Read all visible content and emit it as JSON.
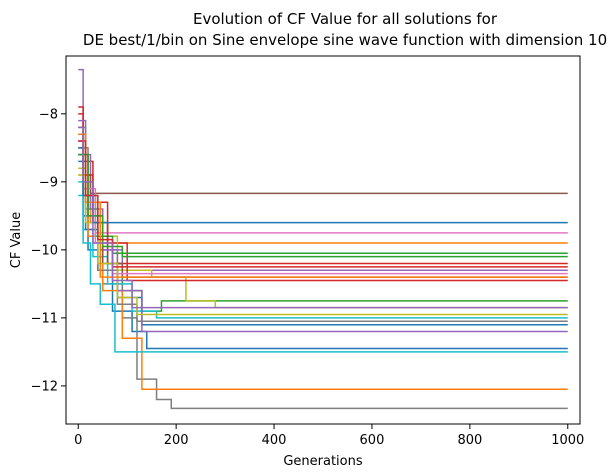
{
  "chart_data": {
    "type": "line",
    "title": "Evolution of CF Value for all solutions for",
    "subtitle": "DE best/1/bin on Sine envelope sine wave function with dimension 10",
    "xlabel": "Generations",
    "ylabel": "CF Value",
    "xlim": [
      -25,
      1025
    ],
    "ylim": [
      -12.56,
      -7.15
    ],
    "x_ticks": [
      0,
      200,
      400,
      600,
      800,
      1000
    ],
    "y_ticks": [
      -8,
      -9,
      -10,
      -11,
      -12
    ],
    "x_tick_labels": [
      "0",
      "200",
      "400",
      "600",
      "800",
      "1000"
    ],
    "y_tick_labels": [
      "−8",
      "−9",
      "−10",
      "−11",
      "−12"
    ],
    "grid": false,
    "legend": "none",
    "series": [
      {
        "color": "#1f77b4",
        "points": [
          [
            0,
            -8.6
          ],
          [
            10,
            -9.5
          ],
          [
            20,
            -10.0
          ],
          [
            40,
            -10.3
          ],
          [
            70,
            -10.9
          ],
          [
            110,
            -11.2
          ],
          [
            140,
            -11.45
          ],
          [
            1000,
            -11.45
          ]
        ]
      },
      {
        "color": "#ff7f0e",
        "points": [
          [
            0,
            -8.5
          ],
          [
            10,
            -9.2
          ],
          [
            25,
            -9.6
          ],
          [
            45,
            -9.9
          ],
          [
            70,
            -9.9
          ],
          [
            1000,
            -9.9
          ]
        ]
      },
      {
        "color": "#2ca02c",
        "points": [
          [
            0,
            -8.2
          ],
          [
            10,
            -9.0
          ],
          [
            30,
            -9.6
          ],
          [
            60,
            -10.2
          ],
          [
            90,
            -10.6
          ],
          [
            130,
            -10.9
          ],
          [
            170,
            -10.75
          ],
          [
            1000,
            -10.75
          ]
        ]
      },
      {
        "color": "#d62728",
        "points": [
          [
            0,
            -8.0
          ],
          [
            10,
            -8.7
          ],
          [
            30,
            -9.3
          ],
          [
            60,
            -9.9
          ],
          [
            100,
            -10.2
          ],
          [
            1000,
            -10.2
          ]
        ]
      },
      {
        "color": "#9467bd",
        "points": [
          [
            0,
            -7.35
          ],
          [
            10,
            -8.6
          ],
          [
            25,
            -9.4
          ],
          [
            50,
            -10.0
          ],
          [
            90,
            -10.3
          ],
          [
            1000,
            -10.3
          ]
        ]
      },
      {
        "color": "#8c564b",
        "points": [
          [
            0,
            -8.4
          ],
          [
            10,
            -8.9
          ],
          [
            25,
            -9.17
          ],
          [
            1000,
            -9.17
          ]
        ]
      },
      {
        "color": "#e377c2",
        "points": [
          [
            0,
            -8.3
          ],
          [
            15,
            -9.2
          ],
          [
            35,
            -9.75
          ],
          [
            1000,
            -9.75
          ]
        ]
      },
      {
        "color": "#7f7f7f",
        "points": [
          [
            0,
            -8.5
          ],
          [
            20,
            -9.6
          ],
          [
            50,
            -10.5
          ],
          [
            90,
            -11.0
          ],
          [
            120,
            -11.9
          ],
          [
            160,
            -12.2
          ],
          [
            190,
            -12.33
          ],
          [
            1000,
            -12.33
          ]
        ]
      },
      {
        "color": "#bcbd22",
        "points": [
          [
            0,
            -8.8
          ],
          [
            15,
            -9.3
          ],
          [
            40,
            -9.8
          ],
          [
            80,
            -10.3
          ],
          [
            150,
            -10.4
          ],
          [
            220,
            -10.75
          ],
          [
            280,
            -10.85
          ],
          [
            1000,
            -10.85
          ]
        ]
      },
      {
        "color": "#17becf",
        "points": [
          [
            0,
            -9.2
          ],
          [
            10,
            -9.7
          ],
          [
            30,
            -10.1
          ],
          [
            60,
            -10.5
          ],
          [
            110,
            -10.9
          ],
          [
            160,
            -11.0
          ],
          [
            1000,
            -11.0
          ]
        ]
      },
      {
        "color": "#1f77b4",
        "points": [
          [
            0,
            -8.7
          ],
          [
            15,
            -9.7
          ],
          [
            40,
            -10.3
          ],
          [
            80,
            -10.7
          ],
          [
            130,
            -11.1
          ],
          [
            1000,
            -11.1
          ]
        ]
      },
      {
        "color": "#ff7f0e",
        "points": [
          [
            0,
            -8.9
          ],
          [
            20,
            -9.8
          ],
          [
            50,
            -10.6
          ],
          [
            90,
            -11.3
          ],
          [
            130,
            -12.05
          ],
          [
            1000,
            -12.05
          ]
        ]
      },
      {
        "color": "#2ca02c",
        "points": [
          [
            0,
            -8.3
          ],
          [
            10,
            -9.2
          ],
          [
            35,
            -9.8
          ],
          [
            70,
            -10.05
          ],
          [
            1000,
            -10.05
          ]
        ]
      },
      {
        "color": "#d62728",
        "points": [
          [
            0,
            -7.9
          ],
          [
            10,
            -8.9
          ],
          [
            30,
            -9.6
          ],
          [
            60,
            -10.2
          ],
          [
            100,
            -10.45
          ],
          [
            1000,
            -10.45
          ]
        ]
      },
      {
        "color": "#9467bd",
        "points": [
          [
            0,
            -8.1
          ],
          [
            15,
            -9.3
          ],
          [
            45,
            -10.0
          ],
          [
            80,
            -10.6
          ],
          [
            130,
            -11.2
          ],
          [
            1000,
            -11.2
          ]
        ]
      },
      {
        "color": "#8c564b",
        "points": [
          [
            0,
            -8.6
          ],
          [
            20,
            -9.5
          ],
          [
            50,
            -10.2
          ],
          [
            90,
            -10.4
          ],
          [
            1000,
            -10.4
          ]
        ]
      },
      {
        "color": "#e377c2",
        "points": [
          [
            0,
            -8.4
          ],
          [
            10,
            -9.1
          ],
          [
            35,
            -9.9
          ],
          [
            70,
            -10.35
          ],
          [
            1000,
            -10.35
          ]
        ]
      },
      {
        "color": "#7f7f7f",
        "points": [
          [
            0,
            -8.2
          ],
          [
            15,
            -9.4
          ],
          [
            40,
            -10.3
          ],
          [
            80,
            -10.8
          ],
          [
            120,
            -11.05
          ],
          [
            1000,
            -11.05
          ]
        ]
      },
      {
        "color": "#bcbd22",
        "points": [
          [
            0,
            -8.9
          ],
          [
            15,
            -9.6
          ],
          [
            40,
            -10.2
          ],
          [
            80,
            -10.7
          ],
          [
            120,
            -10.95
          ],
          [
            1000,
            -10.95
          ]
        ]
      },
      {
        "color": "#17becf",
        "points": [
          [
            0,
            -9.0
          ],
          [
            10,
            -9.9
          ],
          [
            25,
            -10.5
          ],
          [
            45,
            -10.8
          ],
          [
            75,
            -11.5
          ],
          [
            1000,
            -11.5
          ]
        ]
      },
      {
        "color": "#1f77b4",
        "points": [
          [
            0,
            -8.5
          ],
          [
            10,
            -9.2
          ],
          [
            30,
            -9.6
          ],
          [
            1000,
            -9.6
          ]
        ]
      },
      {
        "color": "#ff7f0e",
        "points": [
          [
            0,
            -8.3
          ],
          [
            15,
            -9.3
          ],
          [
            45,
            -10.4
          ],
          [
            1000,
            -10.4
          ]
        ]
      },
      {
        "color": "#2ca02c",
        "points": [
          [
            0,
            -8.6
          ],
          [
            20,
            -9.5
          ],
          [
            50,
            -9.95
          ],
          [
            90,
            -10.1
          ],
          [
            1000,
            -10.1
          ]
        ]
      },
      {
        "color": "#d62728",
        "points": [
          [
            0,
            -8.4
          ],
          [
            15,
            -9.2
          ],
          [
            40,
            -9.85
          ],
          [
            70,
            -10.25
          ],
          [
            1000,
            -10.25
          ]
        ]
      },
      {
        "color": "#9467bd",
        "points": [
          [
            0,
            -8.2
          ],
          [
            10,
            -9.0
          ],
          [
            30,
            -9.9
          ],
          [
            70,
            -10.45
          ],
          [
            110,
            -10.85
          ],
          [
            1000,
            -10.85
          ]
        ]
      }
    ]
  }
}
